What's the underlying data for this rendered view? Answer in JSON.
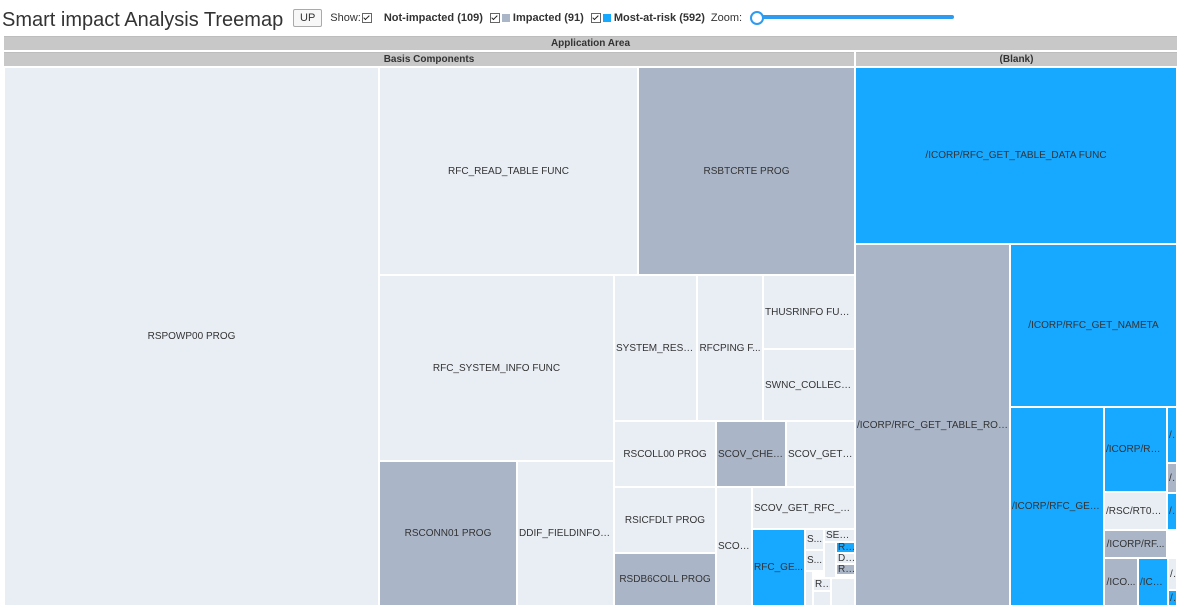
{
  "title": "Smart impact Analysis Treemap",
  "toolbar": {
    "up_label": "UP",
    "show_label": "Show:",
    "legend": [
      {
        "label": "Not-impacted (109)",
        "color": "#e9eef5"
      },
      {
        "label": "Impacted (91)",
        "color": "#aab6c7"
      },
      {
        "label": "Most-at-risk (592)",
        "color": "#16a9ff"
      }
    ],
    "zoom_label": "Zoom:"
  },
  "colors": {
    "not_impacted": "#e9eef5",
    "impacted": "#aab6c7",
    "most_at_risk": "#16a9ff"
  },
  "treemap": {
    "root_label": "Application Area",
    "groups": [
      {
        "label": "Basis Components"
      },
      {
        "label": "(Blank)"
      }
    ],
    "tiles": [
      {
        "label": "RSPOWP00 PROG",
        "status": "not-impacted"
      },
      {
        "label": "RFC_READ_TABLE FUNC",
        "status": "not-impacted"
      },
      {
        "label": "RSBTCRTE PROG",
        "status": "impacted"
      },
      {
        "label": "RFC_SYSTEM_INFO FUNC",
        "status": "not-impacted"
      },
      {
        "label": "SYSTEM_RESE...",
        "status": "not-impacted"
      },
      {
        "label": "RFCPING F...",
        "status": "not-impacted"
      },
      {
        "label": "THUSRINFO FUNC",
        "status": "not-impacted"
      },
      {
        "label": "SWNC_COLLECT...",
        "status": "not-impacted"
      },
      {
        "label": "RSCOLL00 PROG",
        "status": "not-impacted"
      },
      {
        "label": "SCOV_CHEC...",
        "status": "impacted"
      },
      {
        "label": "SCOV_GET_...",
        "status": "not-impacted"
      },
      {
        "label": "RSCONN01 PROG",
        "status": "impacted"
      },
      {
        "label": "DDIF_FIELDINFO_...",
        "status": "not-impacted"
      },
      {
        "label": "RSICFDLT PROG",
        "status": "not-impacted"
      },
      {
        "label": "SCOV_GET_RFC_S...",
        "status": "not-impacted"
      },
      {
        "label": "SCOV...",
        "status": "not-impacted"
      },
      {
        "label": "RFC_GE...",
        "status": "most-at-risk"
      },
      {
        "label": "S...",
        "status": "not-impacted"
      },
      {
        "label": "S...",
        "status": "not-impacted"
      },
      {
        "label": "SE1...",
        "status": "not-impacted"
      },
      {
        "label": "R...",
        "status": "most-at-risk"
      },
      {
        "label": "D...",
        "status": "not-impacted"
      },
      {
        "label": "R...",
        "status": "impacted"
      },
      {
        "label": "R...",
        "status": "not-impacted"
      },
      {
        "label": "RSDB6COLL PROG",
        "status": "impacted"
      },
      {
        "label": "/ICORP/RFC_GET_TABLE_DATA FUNC",
        "status": "most-at-risk"
      },
      {
        "label": "/ICORP/RFC_GET_TABLE_ROW...",
        "status": "impacted"
      },
      {
        "label": "/ICORP/RFC_GET_NAMETA",
        "status": "most-at-risk"
      },
      {
        "label": "/ICORP/RFC_GET...",
        "status": "most-at-risk"
      },
      {
        "label": "/ICORP/RFC...",
        "status": "most-at-risk"
      },
      {
        "label": "/IC",
        "status": "most-at-risk"
      },
      {
        "label": "/IC",
        "status": "impacted"
      },
      {
        "label": "/RSC/RT01...",
        "status": "not-impacted"
      },
      {
        "label": "/IC",
        "status": "most-at-risk"
      },
      {
        "label": "/ICORP/RF...",
        "status": "impacted"
      },
      {
        "label": "/ICO...",
        "status": "impacted"
      },
      {
        "label": "/ICO...",
        "status": "most-at-risk"
      },
      {
        "label": "/...",
        "status": "not-impacted"
      },
      {
        "label": "/I",
        "status": "most-at-risk"
      }
    ]
  }
}
